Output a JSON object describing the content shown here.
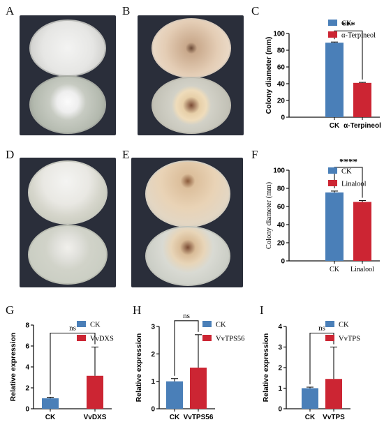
{
  "panel_labels": [
    "A",
    "B",
    "C",
    "D",
    "E",
    "F",
    "G",
    "H",
    "I"
  ],
  "colors": {
    "ck": "#4a7fb8",
    "treatment": "#cc2533",
    "photo_bg": "#2a2e3a"
  },
  "chart_data": [
    {
      "id": "C",
      "type": "bar",
      "categories": [
        "CK",
        "α-Terpineol"
      ],
      "tick_style": "bold",
      "values": [
        89,
        41
      ],
      "errors": [
        0.8,
        0.6
      ],
      "ylabel": "Colony diameter (mm)",
      "ylim": [
        0,
        100
      ],
      "yticks": [
        0,
        20,
        40,
        60,
        80,
        100
      ],
      "legend": [
        "CK",
        "α-Terpineol"
      ],
      "significance": "***"
    },
    {
      "id": "F",
      "type": "bar",
      "categories": [
        "CK",
        "Linalool"
      ],
      "tick_style": "normal",
      "values": [
        75.5,
        65
      ],
      "errors": [
        1.5,
        1.5
      ],
      "ylabel": "Colony diameter (mm)",
      "ylim": [
        0,
        100
      ],
      "yticks": [
        0,
        20,
        40,
        60,
        80,
        100
      ],
      "legend": [
        "CK",
        "Linalool"
      ],
      "significance": "****"
    },
    {
      "id": "G",
      "type": "bar",
      "categories": [
        "CK",
        "VvDXS"
      ],
      "tick_style": "bold",
      "values": [
        1.0,
        3.15
      ],
      "errors": [
        0.1,
        2.75
      ],
      "ylabel": "Relative expression",
      "ylim": [
        0,
        8
      ],
      "yticks": [
        0,
        2,
        4,
        6,
        8
      ],
      "legend": [
        "CK",
        "VvDXS"
      ],
      "significance": "ns"
    },
    {
      "id": "H",
      "type": "bar",
      "categories": [
        "CK",
        "VvTPS56"
      ],
      "tick_style": "bold",
      "values": [
        1.0,
        1.5
      ],
      "errors": [
        0.1,
        1.2
      ],
      "ylabel": "Relative expression",
      "ylim": [
        0,
        3
      ],
      "yticks": [
        0,
        1,
        2,
        3
      ],
      "legend": [
        "CK",
        "VvTPS56"
      ],
      "significance": "ns"
    },
    {
      "id": "I",
      "type": "bar",
      "categories": [
        "CK",
        "VvTPS"
      ],
      "tick_style": "bold",
      "values": [
        1.0,
        1.45
      ],
      "errors": [
        0.05,
        1.55
      ],
      "ylabel": "Relative expression",
      "ylim": [
        0,
        4
      ],
      "yticks": [
        0,
        1,
        2,
        3,
        4
      ],
      "legend": [
        "CK",
        "VvTPS"
      ],
      "significance": "ns"
    }
  ]
}
